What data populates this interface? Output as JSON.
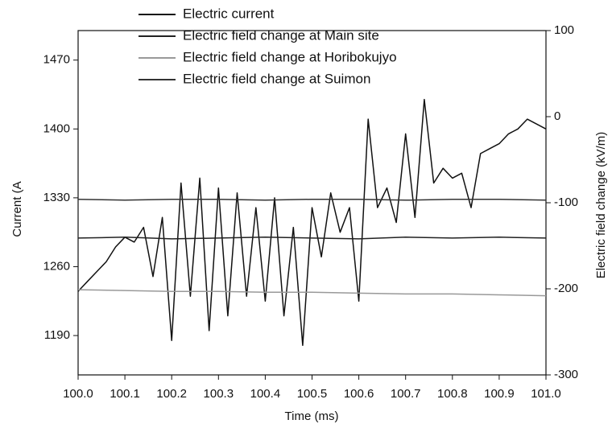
{
  "chart_data": {
    "type": "line",
    "x_label": "Time (ms)",
    "y_label": "Current (A",
    "y2_label": "Electric field change (kV/m)",
    "xlim": [
      100,
      101
    ],
    "xticks": [
      {
        "value": 100,
        "label": "100.0"
      },
      100.1,
      100.2,
      100.3,
      100.4,
      100.5,
      100.6,
      100.7,
      100.8,
      100.9,
      {
        "value": 101,
        "label": "101.0"
      }
    ],
    "ylim": [
      1150,
      1500
    ],
    "yticks": [
      1190,
      1260,
      1330,
      1400,
      1470
    ],
    "y2lim": [
      -300,
      100
    ],
    "y2ticks": [
      -300,
      -200,
      -100,
      0,
      100
    ],
    "series": [
      {
        "name": "Electric current",
        "color": "#111111",
        "axis": "y",
        "x": [
          100.0,
          100.02,
          100.04,
          100.06,
          100.08,
          100.1,
          100.12,
          100.14,
          100.16,
          100.18,
          100.2,
          100.22,
          100.24,
          100.26,
          100.28,
          100.3,
          100.32,
          100.34,
          100.36,
          100.38,
          100.4,
          100.42,
          100.44,
          100.46,
          100.48,
          100.5,
          100.52,
          100.54,
          100.56,
          100.58,
          100.6,
          100.62,
          100.64,
          100.66,
          100.68,
          100.7,
          100.72,
          100.74,
          100.76,
          100.78,
          100.8,
          100.82,
          100.84,
          100.86,
          100.88,
          100.9,
          100.92,
          100.94,
          100.96,
          100.98,
          101.0
        ],
        "values": [
          1235,
          1245,
          1255,
          1265,
          1280,
          1290,
          1285,
          1300,
          1250,
          1310,
          1185,
          1345,
          1230,
          1350,
          1195,
          1340,
          1210,
          1335,
          1230,
          1320,
          1225,
          1330,
          1210,
          1300,
          1180,
          1320,
          1270,
          1335,
          1295,
          1320,
          1225,
          1410,
          1320,
          1340,
          1305,
          1395,
          1310,
          1430,
          1345,
          1360,
          1350,
          1355,
          1320,
          1375,
          1380,
          1385,
          1395,
          1400,
          1410,
          1405,
          1400
        ]
      },
      {
        "name": "Electric field change at Main site",
        "color": "#222222",
        "axis": "y2",
        "x": [
          100.0,
          100.1,
          100.2,
          100.3,
          100.4,
          100.5,
          100.6,
          100.7,
          100.8,
          100.9,
          101.0
        ],
        "values": [
          -141,
          -140,
          -142,
          -141,
          -140,
          -141,
          -142,
          -140,
          -141,
          -140,
          -141
        ]
      },
      {
        "name": "Electric field change at Horibokujyo",
        "color": "#999999",
        "axis": "y2",
        "x": [
          100.0,
          100.1,
          100.2,
          100.3,
          100.4,
          100.5,
          100.6,
          100.7,
          100.8,
          100.9,
          101.0
        ],
        "values": [
          -201,
          -202,
          -203,
          -203,
          -204,
          -204,
          -205,
          -206,
          -206,
          -207,
          -208
        ]
      },
      {
        "name": "Electric field change at Suimon",
        "color": "#333333",
        "axis": "y2",
        "x": [
          100.0,
          100.1,
          100.2,
          100.3,
          100.4,
          100.5,
          100.6,
          100.7,
          100.8,
          100.9,
          101.0
        ],
        "values": [
          -96,
          -97,
          -96,
          -96,
          -97,
          -96,
          -96,
          -97,
          -96,
          -96,
          -97
        ]
      }
    ]
  }
}
